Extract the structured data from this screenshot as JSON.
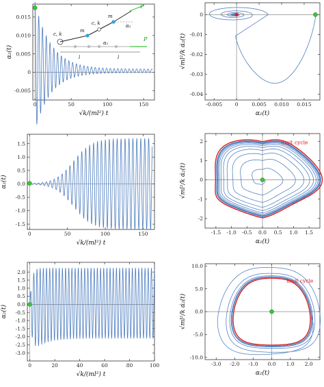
{
  "colors": {
    "curve": "#4a7bbf",
    "limit": "#d62020",
    "marker_green": "#3cc43c",
    "marker_red": "#e02020",
    "axis": "#555555"
  },
  "chart_data": [
    {
      "type": "line",
      "xlabel": "√k/(ml²) t",
      "ylabel": "α₂(t)",
      "xlim": [
        -3,
        165
      ],
      "ylim": [
        -0.0075,
        0.0185
      ],
      "xticks": [
        0,
        50,
        100,
        150
      ],
      "xtick_labels": [
        "0",
        "50",
        "100",
        "150"
      ],
      "yticks": [
        -0.005,
        0,
        0.005,
        0.01,
        0.015
      ],
      "ytick_labels": [
        "-0.005",
        "0",
        "0.005",
        "0.010",
        "0.015"
      ],
      "series": [
        {
          "model": "damped_oscillation",
          "start": [
            0,
            0.0175
          ],
          "envelope_end": 0.0005,
          "period": 5.2
        }
      ],
      "initial_point": [
        0,
        0.0175
      ],
      "inset": {
        "labels": [
          "c, k",
          "m",
          "c, k",
          "m",
          "α₂",
          "α₁",
          "P",
          "P",
          "l",
          "l"
        ]
      }
    },
    {
      "type": "line",
      "xlabel": "α₂(t)",
      "ylabel": "√ml²/k α̇₂(t)",
      "xlim": [
        -0.007,
        0.0185
      ],
      "ylim": [
        -0.043,
        0.006
      ],
      "xticks": [
        -0.005,
        0,
        0.005,
        0.01,
        0.015
      ],
      "xtick_labels": [
        "-0.005",
        "0",
        "0.005",
        "0.010",
        "0.015"
      ],
      "yticks": [
        -0.04,
        -0.03,
        -0.02,
        -0.01,
        0
      ],
      "ytick_labels": [
        "-0.04",
        "-0.03",
        "-0.02",
        "-0.01",
        "0"
      ],
      "series": [
        {
          "model": "phase_spiral_in",
          "start": [
            0.0175,
            0
          ],
          "end": [
            0,
            0
          ]
        }
      ],
      "start_point": [
        0.0175,
        0
      ],
      "fixed_point": [
        0,
        0
      ]
    },
    {
      "type": "line",
      "xlabel": "√k/(ml²) t",
      "ylabel": "α₂(t)",
      "xlim": [
        -3,
        165
      ],
      "ylim": [
        -1.7,
        1.85
      ],
      "xticks": [
        0,
        50,
        100,
        150
      ],
      "xtick_labels": [
        "0",
        "50",
        "100",
        "150"
      ],
      "yticks": [
        -1.5,
        -1.0,
        -0.5,
        0,
        0.5,
        1.0,
        1.5
      ],
      "ytick_labels": [
        "-1.5",
        "-1.0",
        "-0.5",
        "0.0",
        "0.5",
        "1.0",
        "1.5"
      ],
      "series": [
        {
          "model": "growing_oscillation",
          "start": [
            0,
            0.02
          ],
          "saturation": 1.7,
          "period": 5.2
        }
      ],
      "initial_point": [
        0,
        0.02
      ]
    },
    {
      "type": "line",
      "xlabel": "α₂(t)",
      "ylabel": "√ml²/k α̇₂(t)",
      "xlim": [
        -1.85,
        1.85
      ],
      "ylim": [
        -2.5,
        2.4
      ],
      "xticks": [
        -1.5,
        -1.0,
        -0.5,
        0,
        0.5,
        1.0,
        1.5
      ],
      "xtick_labels": [
        "-1.5",
        "-1.0",
        "-0.5",
        "0.0",
        "0.5",
        "1.0",
        "1.5"
      ],
      "yticks": [
        -2,
        -1,
        0,
        1,
        2
      ],
      "ytick_labels": [
        "-2",
        "-1",
        "0",
        "1",
        "2"
      ],
      "series": [
        {
          "model": "phase_spiral_out",
          "start": [
            0,
            0
          ],
          "limit_cycle_x": 1.7
        }
      ],
      "annotation": "limit cycle",
      "start_point": [
        0,
        0
      ]
    },
    {
      "type": "line",
      "xlabel": "√k/(ml²) t",
      "ylabel": "α₂(t)",
      "xlim": [
        -2,
        100
      ],
      "ylim": [
        -3.5,
        2.6
      ],
      "xticks": [
        0,
        20,
        40,
        60,
        80,
        100
      ],
      "xtick_labels": [
        "0",
        "20",
        "40",
        "60",
        "80",
        "100"
      ],
      "yticks": [
        -3,
        -2.5,
        -2,
        -1.5,
        -1,
        -0.5,
        0,
        0.5,
        1,
        1.5,
        2
      ],
      "ytick_labels": [
        "-3.0",
        "-2.5",
        "-2.0",
        "-1.5",
        "-1.0",
        "-0.5",
        "0.0",
        "0.5",
        "1.0",
        "1.5",
        "2.0"
      ],
      "series": [
        {
          "model": "fast_saturating_oscillation",
          "start": [
            0,
            0
          ],
          "min": -3.1,
          "max": 2.25,
          "period": 2.55
        }
      ],
      "initial_point": [
        0,
        0
      ]
    },
    {
      "type": "line",
      "xlabel": "α₂(t)",
      "ylabel": "√ml²/k α̇₂(t)",
      "xlim": [
        -3.6,
        2.6
      ],
      "ylim": [
        -10.5,
        10.5
      ],
      "xticks": [
        -3,
        -2,
        -1,
        0,
        1,
        2
      ],
      "xtick_labels": [
        "-3.0",
        "-2.0",
        "-1.0",
        "0.0",
        "1.0",
        "2.0"
      ],
      "yticks": [
        -10,
        -5,
        0,
        5,
        10
      ],
      "ytick_labels": [
        "-10.0",
        "-5.0",
        "0.0",
        "5.0",
        "10.0"
      ],
      "series": [
        {
          "model": "phase_outer_converge",
          "start": [
            0,
            0
          ],
          "limit_cycle_x": 2.1
        }
      ],
      "annotation": "limit cycle",
      "start_point": [
        0,
        0
      ]
    }
  ]
}
